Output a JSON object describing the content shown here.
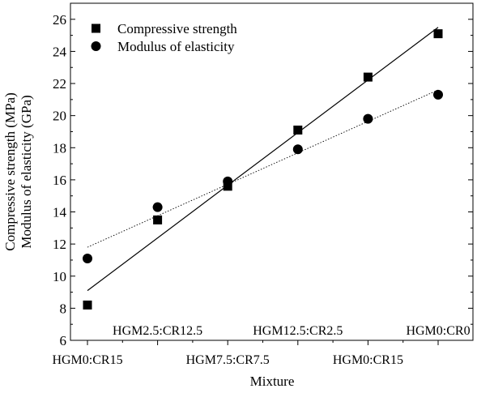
{
  "chart_data": {
    "type": "scatter",
    "title": "",
    "xlabel": "Mixture",
    "ylabel": [
      "Compressive strength (MPa)",
      "Modulus of elasticity (GPa)"
    ],
    "categories": [
      "HGM0:CR15",
      "HGM2.5:CR12.5",
      "HGM7.5:CR7.5",
      "HGM12.5:CR2.5",
      "HGM0:CR15",
      "HGM0:CR0"
    ],
    "x_tick_rows": [
      "lower",
      "upper",
      "lower",
      "upper",
      "lower",
      "upper"
    ],
    "ylim": [
      6,
      27
    ],
    "yticks": [
      6,
      8,
      10,
      12,
      14,
      16,
      18,
      20,
      22,
      24,
      26
    ],
    "grid": false,
    "legend_position": "top-left",
    "series": [
      {
        "name": "Compressive strength",
        "marker": "square",
        "values": [
          8.2,
          13.5,
          15.6,
          19.1,
          22.4,
          25.1
        ],
        "trendline": {
          "style": "solid",
          "from": [
            1,
            9.1
          ],
          "to": [
            6,
            25.5
          ]
        }
      },
      {
        "name": "Modulus of elasticity",
        "marker": "circle",
        "values": [
          11.1,
          14.3,
          15.9,
          17.9,
          19.8,
          21.3
        ],
        "trendline": {
          "style": "dotted",
          "from": [
            1,
            11.8
          ],
          "to": [
            6,
            21.6
          ]
        }
      }
    ]
  }
}
